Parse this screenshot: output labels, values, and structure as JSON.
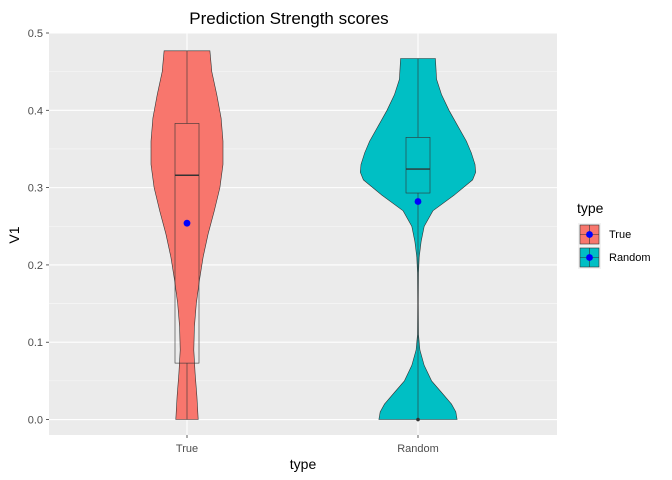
{
  "chart_data": {
    "type": "violin",
    "title": "Prediction Strength scores",
    "xlabel": "type",
    "ylabel": "V1",
    "categories": [
      "True",
      "Random"
    ],
    "ylim": [
      -0.02,
      0.5
    ],
    "yticks": [
      0.0,
      0.1,
      0.2,
      0.3,
      0.4,
      0.5
    ],
    "ytick_labels": [
      "0.0",
      "0.1",
      "0.2",
      "0.3",
      "0.4",
      "0.5"
    ],
    "grid": true,
    "legend": {
      "title": "type",
      "position": "right",
      "entries": [
        "True",
        "Random"
      ]
    },
    "colors": {
      "True": "#F8766D",
      "Random": "#00BFC4",
      "mean_point": "#0000FF",
      "panel": "#EBEBEB",
      "grid": "#FFFFFF"
    },
    "series": [
      {
        "name": "True",
        "min": 0.0,
        "q1": 0.073,
        "median": 0.316,
        "q3": 0.383,
        "max": 0.477,
        "mean": 0.254,
        "outliers": [],
        "density": [
          [
            0.0,
            0.18
          ],
          [
            0.03,
            0.16
          ],
          [
            0.06,
            0.13
          ],
          [
            0.09,
            0.11
          ],
          [
            0.12,
            0.12
          ],
          [
            0.15,
            0.15
          ],
          [
            0.18,
            0.2
          ],
          [
            0.21,
            0.26
          ],
          [
            0.24,
            0.34
          ],
          [
            0.27,
            0.44
          ],
          [
            0.3,
            0.53
          ],
          [
            0.33,
            0.58
          ],
          [
            0.36,
            0.58
          ],
          [
            0.39,
            0.55
          ],
          [
            0.42,
            0.48
          ],
          [
            0.45,
            0.4
          ],
          [
            0.477,
            0.37
          ]
        ]
      },
      {
        "name": "Random",
        "min": 0.0,
        "q1": 0.293,
        "median": 0.324,
        "q3": 0.365,
        "max": 0.467,
        "mean": 0.282,
        "outliers": [
          0.0
        ],
        "density": [
          [
            0.0,
            0.63
          ],
          [
            0.01,
            0.61
          ],
          [
            0.02,
            0.54
          ],
          [
            0.035,
            0.38
          ],
          [
            0.05,
            0.22
          ],
          [
            0.07,
            0.1
          ],
          [
            0.09,
            0.03
          ],
          [
            0.11,
            0.008
          ],
          [
            0.15,
            0.005
          ],
          [
            0.19,
            0.008
          ],
          [
            0.21,
            0.02
          ],
          [
            0.23,
            0.05
          ],
          [
            0.25,
            0.1
          ],
          [
            0.27,
            0.24
          ],
          [
            0.29,
            0.58
          ],
          [
            0.31,
            0.88
          ],
          [
            0.32,
            0.93
          ],
          [
            0.33,
            0.92
          ],
          [
            0.345,
            0.86
          ],
          [
            0.36,
            0.78
          ],
          [
            0.38,
            0.64
          ],
          [
            0.4,
            0.5
          ],
          [
            0.42,
            0.38
          ],
          [
            0.44,
            0.3
          ],
          [
            0.467,
            0.28
          ]
        ]
      }
    ]
  }
}
